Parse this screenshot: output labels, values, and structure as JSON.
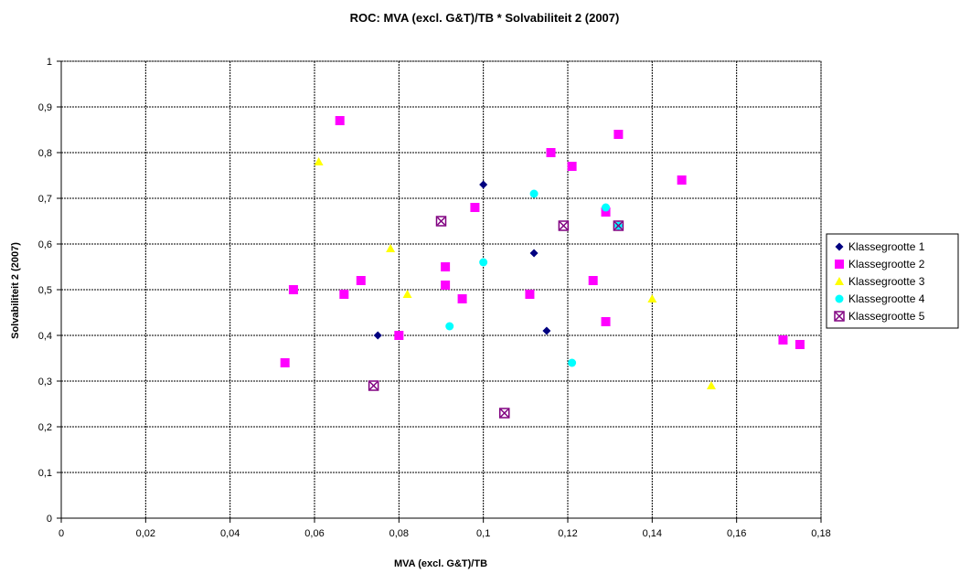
{
  "chart_data": {
    "type": "scatter",
    "title": "ROC: MVA (excl. G&T)/TB * Solvabiliteit 2 (2007)",
    "xlabel": "MVA (excl. G&T)/TB",
    "ylabel": "Solvabiliteit 2 (2007)",
    "xlim": [
      0,
      0.18
    ],
    "ylim": [
      0,
      1
    ],
    "x_ticks": [
      "0",
      "0,02",
      "0,04",
      "0,06",
      "0,08",
      "0,1",
      "0,12",
      "0,14",
      "0,16",
      "0,18"
    ],
    "y_ticks": [
      "0",
      "0,1",
      "0,2",
      "0,3",
      "0,4",
      "0,5",
      "0,6",
      "0,7",
      "0,8",
      "0,9",
      "1"
    ],
    "grid": true,
    "legend_position": "right",
    "series": [
      {
        "name": "Klassegrootte 1",
        "marker": "diamond",
        "color": "#000080",
        "points": [
          [
            0.075,
            0.4
          ],
          [
            0.1,
            0.73
          ],
          [
            0.112,
            0.58
          ],
          [
            0.115,
            0.41
          ]
        ]
      },
      {
        "name": "Klassegrootte 2",
        "marker": "square",
        "color": "#FF00FF",
        "points": [
          [
            0.053,
            0.34
          ],
          [
            0.055,
            0.5
          ],
          [
            0.066,
            0.87
          ],
          [
            0.067,
            0.49
          ],
          [
            0.071,
            0.52
          ],
          [
            0.08,
            0.4
          ],
          [
            0.091,
            0.55
          ],
          [
            0.091,
            0.51
          ],
          [
            0.095,
            0.48
          ],
          [
            0.098,
            0.68
          ],
          [
            0.111,
            0.49
          ],
          [
            0.116,
            0.8
          ],
          [
            0.121,
            0.77
          ],
          [
            0.126,
            0.52
          ],
          [
            0.129,
            0.67
          ],
          [
            0.129,
            0.43
          ],
          [
            0.132,
            0.84
          ],
          [
            0.147,
            0.74
          ],
          [
            0.171,
            0.39
          ],
          [
            0.175,
            0.38
          ]
        ]
      },
      {
        "name": "Klassegrootte 3",
        "marker": "triangle",
        "color": "#FFFF00",
        "points": [
          [
            0.061,
            0.78
          ],
          [
            0.078,
            0.59
          ],
          [
            0.082,
            0.49
          ],
          [
            0.14,
            0.48
          ],
          [
            0.154,
            0.29
          ]
        ]
      },
      {
        "name": "Klassegrootte 4",
        "marker": "circle",
        "color": "#00FFFF",
        "points": [
          [
            0.092,
            0.42
          ],
          [
            0.1,
            0.56
          ],
          [
            0.112,
            0.71
          ],
          [
            0.121,
            0.34
          ],
          [
            0.129,
            0.68
          ],
          [
            0.132,
            0.64
          ]
        ]
      },
      {
        "name": "Klassegrootte 5",
        "marker": "boxed-x",
        "color": "#800080",
        "points": [
          [
            0.074,
            0.29
          ],
          [
            0.09,
            0.65
          ],
          [
            0.105,
            0.23
          ],
          [
            0.119,
            0.64
          ],
          [
            0.132,
            0.64
          ]
        ]
      }
    ]
  }
}
